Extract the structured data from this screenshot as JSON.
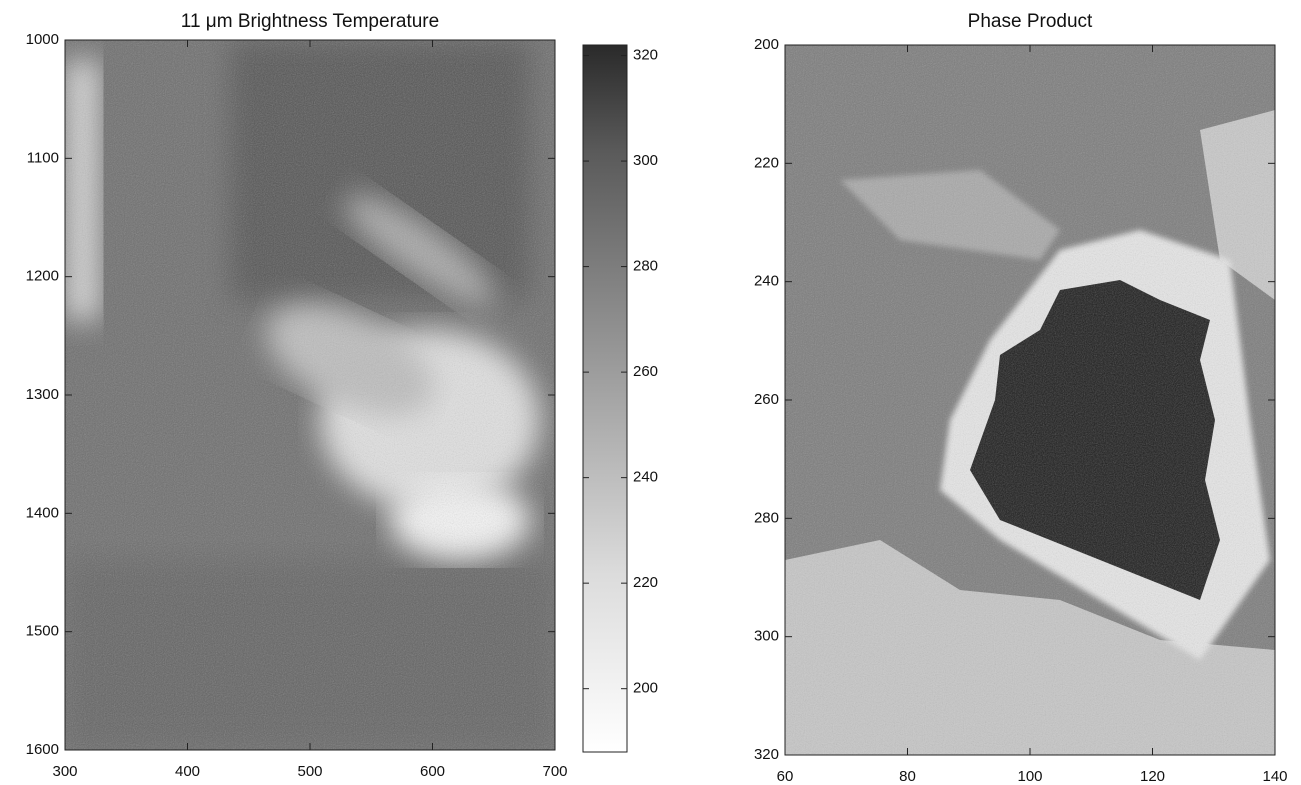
{
  "chart_data": [
    {
      "type": "image",
      "title": "11 μm Brightness Temperature",
      "xlim": [
        300,
        700
      ],
      "xticks": [
        300,
        400,
        500,
        600,
        700
      ],
      "ylim": [
        1600,
        1000
      ],
      "yticks": [
        1000,
        1100,
        1200,
        1300,
        1400,
        1500,
        1600
      ],
      "colorbar": {
        "lim": [
          188,
          322
        ],
        "ticks": [
          200,
          220,
          240,
          260,
          280,
          300,
          320
        ]
      }
    },
    {
      "type": "image",
      "title": "Phase Product",
      "xlim": [
        60,
        140
      ],
      "xticks": [
        60,
        80,
        100,
        120,
        140
      ],
      "ylim": [
        320,
        200
      ],
      "yticks": [
        200,
        220,
        240,
        260,
        280,
        300,
        320
      ]
    }
  ]
}
